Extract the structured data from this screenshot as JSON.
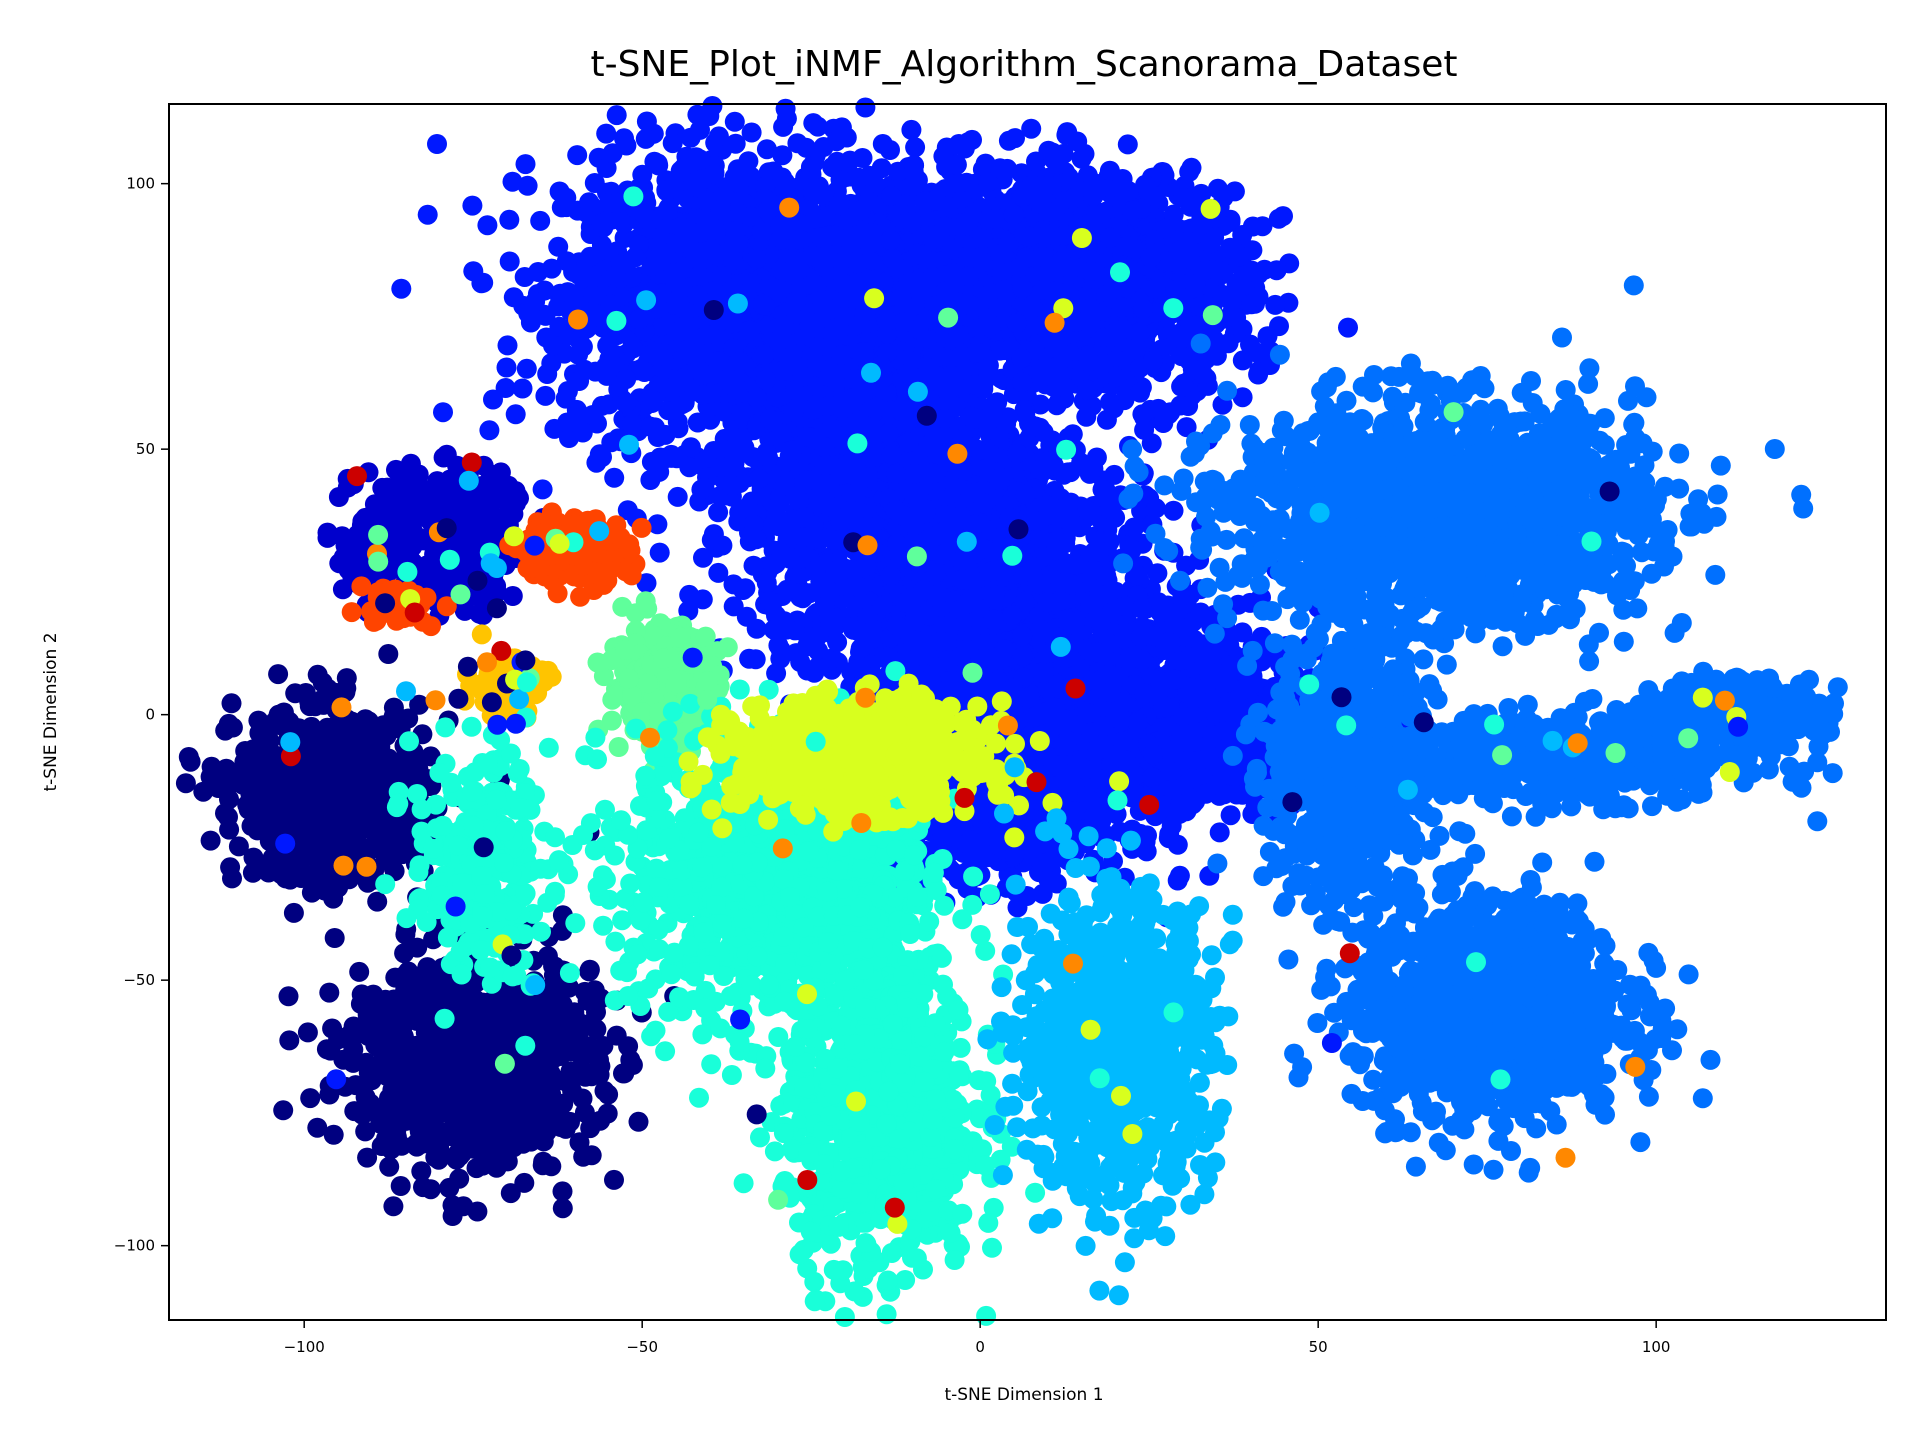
{
  "chart_data": {
    "type": "scatter",
    "title": "t-SNE_Plot_iNMF_Algorithm_Scanorama_Dataset",
    "xlabel": "t-SNE Dimension 1",
    "ylabel": "t-SNE Dimension 2",
    "xlim": [
      -120,
      134
    ],
    "ylim": [
      -114,
      115
    ],
    "xticks": [
      -100,
      -50,
      0,
      50,
      100
    ],
    "yticks": [
      -100,
      -50,
      0,
      50,
      100
    ],
    "xtick_labels": [
      "−100",
      "−50",
      "0",
      "50",
      "100"
    ],
    "ytick_labels": [
      "−100",
      "−50",
      "0",
      "50",
      "100"
    ],
    "grid": false,
    "legend": "none",
    "colormap": "jet",
    "marker_color_default": "#0018ff",
    "clusters": [
      {
        "color": "#0018ff",
        "x": -33,
        "y": 78,
        "sx": 14,
        "sy": 14,
        "n": 2200
      },
      {
        "color": "#0018ff",
        "x": 3,
        "y": 82,
        "sx": 12,
        "sy": 10,
        "n": 1200
      },
      {
        "color": "#0018ff",
        "x": 20,
        "y": 80,
        "sx": 10,
        "sy": 10,
        "n": 900
      },
      {
        "color": "#0018ff",
        "x": -15,
        "y": 40,
        "sx": 11,
        "sy": 16,
        "n": 1300
      },
      {
        "color": "#0018ff",
        "x": 5,
        "y": 25,
        "sx": 10,
        "sy": 12,
        "n": 900
      },
      {
        "color": "#0018ff",
        "x": 20,
        "y": 0,
        "sx": 15,
        "sy": 10,
        "n": 1500
      },
      {
        "color": "#0018ff",
        "x": 2,
        "y": -20,
        "sx": 10,
        "sy": 6,
        "n": 500
      },
      {
        "color": "#0000cc",
        "x": -80,
        "y": 38,
        "sx": 6,
        "sy": 4,
        "n": 250
      },
      {
        "color": "#0000cc",
        "x": -88,
        "y": 28,
        "sx": 3,
        "sy": 4,
        "n": 120
      },
      {
        "color": "#0000cc",
        "x": -76,
        "y": 28,
        "sx": 3,
        "sy": 4,
        "n": 120
      },
      {
        "color": "#ff4400",
        "x": -60,
        "y": 31,
        "sx": 4,
        "sy": 3,
        "n": 180
      },
      {
        "color": "#ff4400",
        "x": -86,
        "y": 21,
        "sx": 3,
        "sy": 2,
        "n": 40
      },
      {
        "color": "#ffc400",
        "x": -70,
        "y": 6,
        "sx": 3,
        "sy": 3,
        "n": 90
      },
      {
        "color": "#5fff9b",
        "x": -47,
        "y": 6,
        "sx": 4,
        "sy": 5,
        "n": 300
      },
      {
        "color": "#000080",
        "x": -96,
        "y": -15,
        "sx": 7,
        "sy": 8,
        "n": 700
      },
      {
        "color": "#000080",
        "x": -75,
        "y": -65,
        "sx": 9,
        "sy": 10,
        "n": 900
      },
      {
        "color": "#19ffd9",
        "x": -74,
        "y": -28,
        "sx": 5,
        "sy": 10,
        "n": 250
      },
      {
        "color": "#19ffd9",
        "x": -30,
        "y": -30,
        "sx": 11,
        "sy": 14,
        "n": 1100
      },
      {
        "color": "#19ffd9",
        "x": -15,
        "y": -75,
        "sx": 7,
        "sy": 15,
        "n": 900
      },
      {
        "color": "#d8ff1e",
        "x": -18,
        "y": -8,
        "sx": 9,
        "sy": 5,
        "n": 700
      },
      {
        "color": "#00baff",
        "x": 20,
        "y": -62,
        "sx": 7,
        "sy": 14,
        "n": 900
      },
      {
        "color": "#0070ff",
        "x": 68,
        "y": 38,
        "sx": 15,
        "sy": 10,
        "n": 1800
      },
      {
        "color": "#0070ff",
        "x": 55,
        "y": -10,
        "sx": 6,
        "sy": 12,
        "n": 700
      },
      {
        "color": "#0070ff",
        "x": 75,
        "y": -55,
        "sx": 10,
        "sy": 10,
        "n": 1200
      },
      {
        "color": "#0070ff",
        "x": 88,
        "y": -8,
        "sx": 14,
        "sy": 4,
        "n": 600
      },
      {
        "color": "#0070ff",
        "x": 112,
        "y": 1,
        "sx": 6,
        "sy": 3,
        "n": 300
      }
    ],
    "outlier_colors": [
      "#19ffd9",
      "#d8ff1e",
      "#ff8800",
      "#cc0000",
      "#0018ff",
      "#00baff",
      "#5fff9b",
      "#000080"
    ]
  }
}
